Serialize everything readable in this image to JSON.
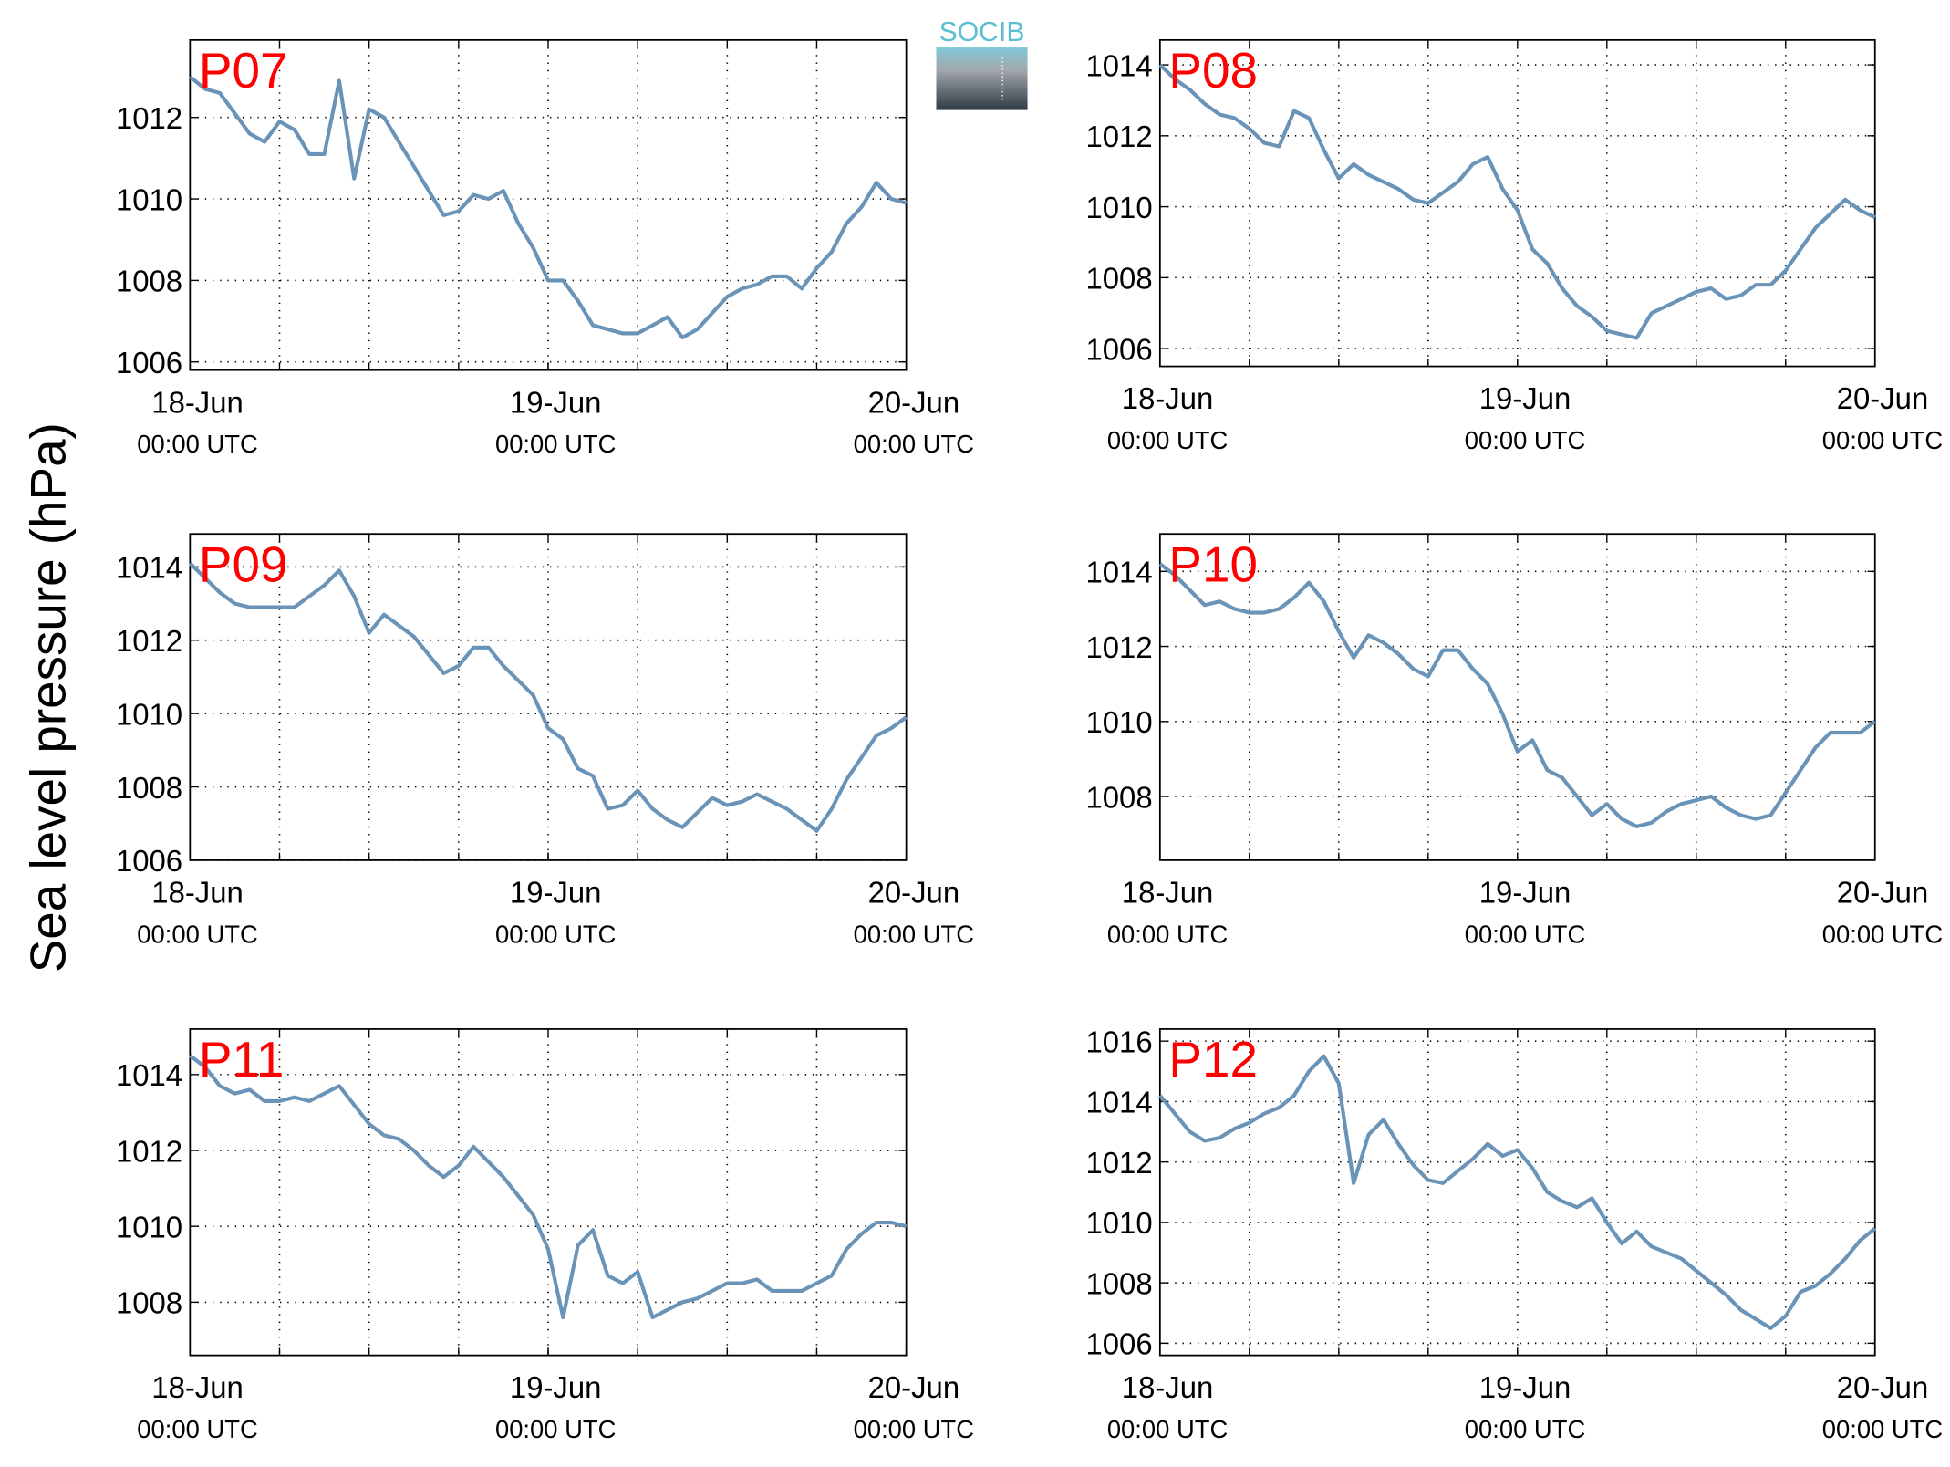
{
  "ylabel": "Sea level pressure (hPa)",
  "logo": "SOCIB",
  "chart_data": [
    {
      "type": "line",
      "title": "P07",
      "xlim": [
        0,
        48
      ],
      "ylim": [
        1005.8,
        1013.9
      ],
      "yticks": [
        1006,
        1008,
        1010,
        1012
      ],
      "xticks": [
        {
          "value": 0,
          "label": "18-Jun",
          "sublabel": "00:00 UTC"
        },
        {
          "value": 24,
          "label": "19-Jun",
          "sublabel": "00:00 UTC"
        },
        {
          "value": 48,
          "label": "20-Jun",
          "sublabel": "00:00 UTC"
        }
      ],
      "xgrid": [
        6,
        12,
        18,
        24,
        30,
        36,
        42
      ],
      "grid": true,
      "color": "#6a93b8",
      "x": [
        0,
        1,
        2,
        3,
        4,
        5,
        6,
        7,
        8,
        9,
        10,
        11,
        12,
        13,
        14,
        15,
        16,
        17,
        18,
        19,
        20,
        21,
        22,
        23,
        24,
        25,
        26,
        27,
        28,
        29,
        30,
        31,
        32,
        33,
        34,
        35,
        36,
        37,
        38,
        39,
        40,
        41,
        42,
        43,
        44,
        45,
        46,
        47,
        48
      ],
      "values": [
        1013.0,
        1012.7,
        1012.6,
        1012.1,
        1011.6,
        1011.4,
        1011.9,
        1011.7,
        1011.1,
        1011.1,
        1012.9,
        1010.5,
        1012.2,
        1012.0,
        1011.4,
        1010.8,
        1010.2,
        1009.6,
        1009.7,
        1010.1,
        1010.0,
        1010.2,
        1009.4,
        1008.8,
        1008.0,
        1008.0,
        1007.5,
        1006.9,
        1006.8,
        1006.7,
        1006.7,
        1006.9,
        1007.1,
        1006.6,
        1006.8,
        1007.2,
        1007.6,
        1007.8,
        1007.9,
        1008.1,
        1008.1,
        1007.8,
        1008.3,
        1008.7,
        1009.4,
        1009.8,
        1010.4,
        1010.0,
        1009.9
      ]
    },
    {
      "type": "line",
      "title": "P08",
      "xlim": [
        0,
        48
      ],
      "ylim": [
        1005.5,
        1014.7
      ],
      "yticks": [
        1006,
        1008,
        1010,
        1012,
        1014
      ],
      "xticks": [
        {
          "value": 0,
          "label": "18-Jun",
          "sublabel": "00:00 UTC"
        },
        {
          "value": 24,
          "label": "19-Jun",
          "sublabel": "00:00 UTC"
        },
        {
          "value": 48,
          "label": "20-Jun",
          "sublabel": "00:00 UTC"
        }
      ],
      "xgrid": [
        6,
        12,
        18,
        24,
        30,
        36,
        42
      ],
      "grid": true,
      "color": "#6a93b8",
      "x": [
        0,
        1,
        2,
        3,
        4,
        5,
        6,
        7,
        8,
        9,
        10,
        11,
        12,
        13,
        14,
        15,
        16,
        17,
        18,
        19,
        20,
        21,
        22,
        23,
        24,
        25,
        26,
        27,
        28,
        29,
        30,
        31,
        32,
        33,
        34,
        35,
        36,
        37,
        38,
        39,
        40,
        41,
        42,
        43,
        44,
        45,
        46,
        47,
        48
      ],
      "values": [
        1014.0,
        1013.6,
        1013.3,
        1012.9,
        1012.6,
        1012.5,
        1012.2,
        1011.8,
        1011.7,
        1012.7,
        1012.5,
        1011.6,
        1010.8,
        1011.2,
        1010.9,
        1010.7,
        1010.5,
        1010.2,
        1010.1,
        1010.4,
        1010.7,
        1011.2,
        1011.4,
        1010.5,
        1009.9,
        1008.8,
        1008.4,
        1007.7,
        1007.2,
        1006.9,
        1006.5,
        1006.4,
        1006.3,
        1007.0,
        1007.2,
        1007.4,
        1007.6,
        1007.7,
        1007.4,
        1007.5,
        1007.8,
        1007.8,
        1008.2,
        1008.8,
        1009.4,
        1009.8,
        1010.2,
        1009.9,
        1009.7
      ]
    },
    {
      "type": "line",
      "title": "P09",
      "xlim": [
        0,
        48
      ],
      "ylim": [
        1006,
        1014.9
      ],
      "yticks": [
        1006,
        1008,
        1010,
        1012,
        1014
      ],
      "xticks": [
        {
          "value": 0,
          "label": "18-Jun",
          "sublabel": "00:00 UTC"
        },
        {
          "value": 24,
          "label": "19-Jun",
          "sublabel": "00:00 UTC"
        },
        {
          "value": 48,
          "label": "20-Jun",
          "sublabel": "00:00 UTC"
        }
      ],
      "xgrid": [
        6,
        12,
        18,
        24,
        30,
        36,
        42
      ],
      "grid": true,
      "color": "#6a93b8",
      "x": [
        0,
        1,
        2,
        3,
        4,
        5,
        6,
        7,
        8,
        9,
        10,
        11,
        12,
        13,
        14,
        15,
        16,
        17,
        18,
        19,
        20,
        21,
        22,
        23,
        24,
        25,
        26,
        27,
        28,
        29,
        30,
        31,
        32,
        33,
        34,
        35,
        36,
        37,
        38,
        39,
        40,
        41,
        42,
        43,
        44,
        45,
        46,
        47,
        48
      ],
      "values": [
        1014.1,
        1013.7,
        1013.3,
        1013.0,
        1012.9,
        1012.9,
        1012.9,
        1012.9,
        1013.2,
        1013.5,
        1013.9,
        1013.2,
        1012.2,
        1012.7,
        1012.4,
        1012.1,
        1011.6,
        1011.1,
        1011.3,
        1011.8,
        1011.8,
        1011.3,
        1010.9,
        1010.5,
        1009.6,
        1009.3,
        1008.5,
        1008.3,
        1007.4,
        1007.5,
        1007.9,
        1007.4,
        1007.1,
        1006.9,
        1007.3,
        1007.7,
        1007.5,
        1007.6,
        1007.8,
        1007.6,
        1007.4,
        1007.1,
        1006.8,
        1007.4,
        1008.2,
        1008.8,
        1009.4,
        1009.6,
        1009.9
      ]
    },
    {
      "type": "line",
      "title": "P10",
      "xlim": [
        0,
        48
      ],
      "ylim": [
        1006.3,
        1015.0
      ],
      "yticks": [
        1008,
        1010,
        1012,
        1014
      ],
      "xticks": [
        {
          "value": 0,
          "label": "18-Jun",
          "sublabel": "00:00 UTC"
        },
        {
          "value": 24,
          "label": "19-Jun",
          "sublabel": "00:00 UTC"
        },
        {
          "value": 48,
          "label": "20-Jun",
          "sublabel": "00:00 UTC"
        }
      ],
      "xgrid": [
        6,
        12,
        18,
        24,
        30,
        36,
        42
      ],
      "grid": true,
      "color": "#6a93b8",
      "x": [
        0,
        1,
        2,
        3,
        4,
        5,
        6,
        7,
        8,
        9,
        10,
        11,
        12,
        13,
        14,
        15,
        16,
        17,
        18,
        19,
        20,
        21,
        22,
        23,
        24,
        25,
        26,
        27,
        28,
        29,
        30,
        31,
        32,
        33,
        34,
        35,
        36,
        37,
        38,
        39,
        40,
        41,
        42,
        43,
        44,
        45,
        46,
        47,
        48
      ],
      "values": [
        1014.2,
        1013.9,
        1013.5,
        1013.1,
        1013.2,
        1013.0,
        1012.9,
        1012.9,
        1013.0,
        1013.3,
        1013.7,
        1013.2,
        1012.4,
        1011.7,
        1012.3,
        1012.1,
        1011.8,
        1011.4,
        1011.2,
        1011.9,
        1011.9,
        1011.4,
        1011.0,
        1010.2,
        1009.2,
        1009.5,
        1008.7,
        1008.5,
        1008.0,
        1007.5,
        1007.8,
        1007.4,
        1007.2,
        1007.3,
        1007.6,
        1007.8,
        1007.9,
        1008.0,
        1007.7,
        1007.5,
        1007.4,
        1007.5,
        1008.1,
        1008.7,
        1009.3,
        1009.7,
        1009.7,
        1009.7,
        1010.0
      ]
    },
    {
      "type": "line",
      "title": "P11",
      "xlim": [
        0,
        48
      ],
      "ylim": [
        1006.6,
        1015.2
      ],
      "yticks": [
        1008,
        1010,
        1012,
        1014
      ],
      "xticks": [
        {
          "value": 0,
          "label": "18-Jun",
          "sublabel": "00:00 UTC"
        },
        {
          "value": 24,
          "label": "19-Jun",
          "sublabel": "00:00 UTC"
        },
        {
          "value": 48,
          "label": "20-Jun",
          "sublabel": "00:00 UTC"
        }
      ],
      "xgrid": [
        6,
        12,
        18,
        24,
        30,
        36,
        42
      ],
      "grid": true,
      "color": "#6a93b8",
      "x": [
        0,
        1,
        2,
        3,
        4,
        5,
        6,
        7,
        8,
        9,
        10,
        11,
        12,
        13,
        14,
        15,
        16,
        17,
        18,
        19,
        20,
        21,
        22,
        23,
        24,
        25,
        26,
        27,
        28,
        29,
        30,
        31,
        32,
        33,
        34,
        35,
        36,
        37,
        38,
        39,
        40,
        41,
        42,
        43,
        44,
        45,
        46,
        47,
        48
      ],
      "values": [
        1014.5,
        1014.2,
        1013.7,
        1013.5,
        1013.6,
        1013.3,
        1013.3,
        1013.4,
        1013.3,
        1013.5,
        1013.7,
        1013.2,
        1012.7,
        1012.4,
        1012.3,
        1012.0,
        1011.6,
        1011.3,
        1011.6,
        1012.1,
        1011.7,
        1011.3,
        1010.8,
        1010.3,
        1009.4,
        1007.6,
        1009.5,
        1009.9,
        1008.7,
        1008.5,
        1008.8,
        1007.6,
        1007.8,
        1008.0,
        1008.1,
        1008.3,
        1008.5,
        1008.5,
        1008.6,
        1008.3,
        1008.3,
        1008.3,
        1008.5,
        1008.7,
        1009.4,
        1009.8,
        1010.1,
        1010.1,
        1010.0
      ]
    },
    {
      "type": "line",
      "title": "P12",
      "xlim": [
        0,
        48
      ],
      "ylim": [
        1005.6,
        1016.4
      ],
      "yticks": [
        1006,
        1008,
        1010,
        1012,
        1014,
        1016
      ],
      "xticks": [
        {
          "value": 0,
          "label": "18-Jun",
          "sublabel": "00:00 UTC"
        },
        {
          "value": 24,
          "label": "19-Jun",
          "sublabel": "00:00 UTC"
        },
        {
          "value": 48,
          "label": "20-Jun",
          "sublabel": "00:00 UTC"
        }
      ],
      "xgrid": [
        6,
        12,
        18,
        24,
        30,
        36,
        42
      ],
      "grid": true,
      "color": "#6a93b8",
      "x": [
        0,
        1,
        2,
        3,
        4,
        5,
        6,
        7,
        8,
        9,
        10,
        11,
        12,
        13,
        14,
        15,
        16,
        17,
        18,
        19,
        20,
        21,
        22,
        23,
        24,
        25,
        26,
        27,
        28,
        29,
        30,
        31,
        32,
        33,
        34,
        35,
        36,
        37,
        38,
        39,
        40,
        41,
        42,
        43,
        44,
        45,
        46,
        47,
        48
      ],
      "values": [
        1014.2,
        1013.6,
        1013.0,
        1012.7,
        1012.8,
        1013.1,
        1013.3,
        1013.6,
        1013.8,
        1014.2,
        1015.0,
        1015.5,
        1014.6,
        1011.3,
        1012.9,
        1013.4,
        1012.6,
        1011.9,
        1011.4,
        1011.3,
        1011.7,
        1012.1,
        1012.6,
        1012.2,
        1012.4,
        1011.8,
        1011.0,
        1010.7,
        1010.5,
        1010.8,
        1010.0,
        1009.3,
        1009.7,
        1009.2,
        1009.0,
        1008.8,
        1008.4,
        1008.0,
        1007.6,
        1007.1,
        1006.8,
        1006.5,
        1006.9,
        1007.7,
        1007.9,
        1008.3,
        1008.8,
        1009.4,
        1009.8
      ]
    }
  ]
}
